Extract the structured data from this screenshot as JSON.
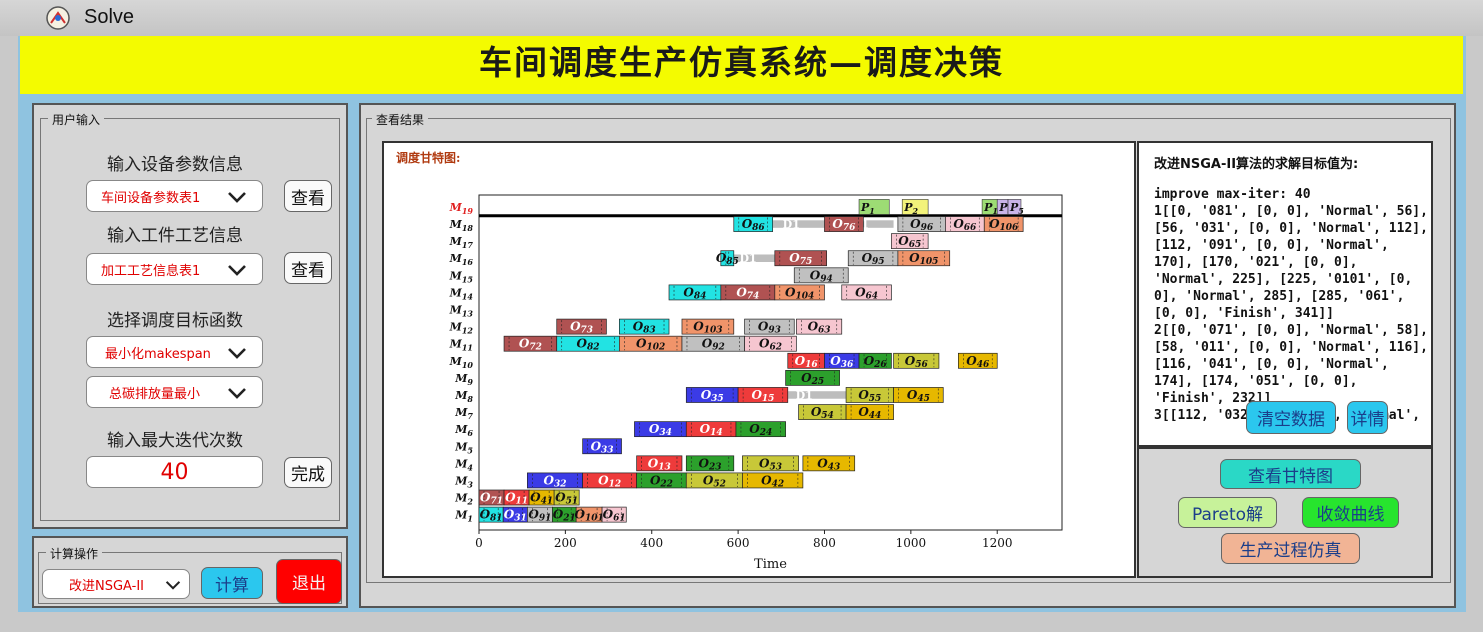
{
  "window": {
    "title": "Solve"
  },
  "banner": {
    "title": "车间调度生产仿真系统—调度决策"
  },
  "input_group": {
    "title": "用户输入",
    "equip_label": "输入设备参数信息",
    "equip_combo": "车间设备参数表1",
    "view_button": "查看",
    "process_label": "输入工件工艺信息",
    "process_combo": "加工工艺信息表1",
    "objective_label": "选择调度目标函数",
    "objective_combo_1": "最小化makespan",
    "objective_combo_2": "总碳排放量最小",
    "iter_label": "输入最大迭代次数",
    "iter_value": "40",
    "done_button": "完成"
  },
  "calc_group": {
    "title": "计算操作",
    "algo_combo": "改进NSGA-II",
    "calc_button": "计算",
    "exit_button": "退出"
  },
  "result_group": {
    "title": "查看结果",
    "chart_caption": "调度甘特图:",
    "objective_caption": "改进NSGA-II算法的求解目标值为:",
    "result_text": "improve max-iter: 40\n1[[0, '081', [0, 0], 'Normal', 56], [56, '031', [0, 0], 'Normal', 112], [112, '091', [0, 0], 'Normal', 170], [170, '021', [0, 0], 'Normal', 225], [225, '0101', [0, 0], 'Normal', 285], [285, '061', [0, 0], 'Finish', 341]]\n2[[0, '071', [0, 0], 'Normal', 58], [58, '011', [0, 0], 'Normal', 116], [116, '041', [0, 0], 'Normal', 174], [174, '051', [0, 0], 'Finish', 232]]\n3[[112, '032', [15, 10], 'Normal',",
    "clear_button": "清空数据",
    "detail_button": "详情",
    "gantt_button": "查看甘特图",
    "pareto_button": "Pareto解",
    "converge_button": "收敛曲线",
    "simulate_button": "生产过程仿真"
  },
  "icons": {
    "app": "solve-app-icon",
    "dropdown": "chevron-down-icon"
  },
  "chart_data": {
    "type": "gantt",
    "xlabel": "Time",
    "xlim": [
      0,
      1350
    ],
    "xticks": [
      "0",
      "200",
      "400",
      "600",
      "800",
      "1000",
      "1200"
    ],
    "machines": [
      "M1",
      "M2",
      "M3",
      "M4",
      "M5",
      "M6",
      "M7",
      "M8",
      "M9",
      "M10",
      "M11",
      "M12",
      "M13",
      "M14",
      "M15",
      "M16",
      "M17",
      "M18",
      "M19"
    ],
    "job_colors": {
      "1": "#ee3b3b",
      "2": "#2ca02c",
      "3": "#3b3be6",
      "4": "#e6b800",
      "5": "#c8c838",
      "6": "#f6c6d0",
      "7": "#b05252",
      "8": "#22e3e3",
      "9": "#c0c0c0",
      "10": "#f0946a",
      "P": "#9ddc74",
      "PM": "#c9b4e8"
    },
    "ops": [
      {
        "m": 1,
        "job": 8,
        "sub": "1",
        "start": 0,
        "end": 56
      },
      {
        "m": 1,
        "job": 3,
        "sub": "1",
        "start": 56,
        "end": 112
      },
      {
        "m": 1,
        "job": 9,
        "sub": "1",
        "start": 112,
        "end": 170
      },
      {
        "m": 1,
        "job": 2,
        "sub": "1",
        "start": 170,
        "end": 225
      },
      {
        "m": 1,
        "job": 10,
        "sub": "1",
        "start": 225,
        "end": 285
      },
      {
        "m": 1,
        "job": 6,
        "sub": "1",
        "start": 285,
        "end": 341
      },
      {
        "m": 2,
        "job": 7,
        "sub": "1",
        "start": 0,
        "end": 58
      },
      {
        "m": 2,
        "job": 1,
        "sub": "1",
        "start": 58,
        "end": 116
      },
      {
        "m": 2,
        "job": 4,
        "sub": "1",
        "start": 116,
        "end": 174
      },
      {
        "m": 2,
        "job": 5,
        "sub": "1",
        "start": 174,
        "end": 232
      },
      {
        "m": 3,
        "job": 3,
        "sub": "2",
        "start": 112,
        "end": 240
      },
      {
        "m": 3,
        "job": 1,
        "sub": "2",
        "start": 240,
        "end": 365
      },
      {
        "m": 3,
        "job": 2,
        "sub": "2",
        "start": 365,
        "end": 480
      },
      {
        "m": 3,
        "job": 5,
        "sub": "2",
        "start": 480,
        "end": 610
      },
      {
        "m": 3,
        "job": 4,
        "sub": "2",
        "start": 610,
        "end": 750
      },
      {
        "m": 4,
        "job": 1,
        "sub": "3",
        "start": 365,
        "end": 470
      },
      {
        "m": 4,
        "job": 2,
        "sub": "3",
        "start": 480,
        "end": 590
      },
      {
        "m": 4,
        "job": 5,
        "sub": "3",
        "start": 610,
        "end": 740
      },
      {
        "m": 4,
        "job": 4,
        "sub": "3",
        "start": 750,
        "end": 870
      },
      {
        "m": 5,
        "job": 3,
        "sub": "3",
        "start": 240,
        "end": 330
      },
      {
        "m": 6,
        "job": 3,
        "sub": "4",
        "start": 360,
        "end": 480
      },
      {
        "m": 6,
        "job": 1,
        "sub": "4",
        "start": 480,
        "end": 595
      },
      {
        "m": 6,
        "job": 2,
        "sub": "4",
        "start": 595,
        "end": 710
      },
      {
        "m": 7,
        "job": 5,
        "sub": "4",
        "start": 740,
        "end": 850
      },
      {
        "m": 7,
        "job": 4,
        "sub": "4",
        "start": 850,
        "end": 960
      },
      {
        "m": 8,
        "job": 3,
        "sub": "5",
        "start": 480,
        "end": 600
      },
      {
        "m": 8,
        "job": 1,
        "sub": "5",
        "start": 600,
        "end": 715
      },
      {
        "m": 8,
        "job": 5,
        "sub": "5",
        "start": 850,
        "end": 960
      },
      {
        "m": 8,
        "job": 4,
        "sub": "5",
        "start": 960,
        "end": 1075
      },
      {
        "m": 9,
        "job": 2,
        "sub": "5",
        "start": 710,
        "end": 835
      },
      {
        "m": 10,
        "job": 1,
        "sub": "6",
        "start": 715,
        "end": 800
      },
      {
        "m": 10,
        "job": 3,
        "sub": "6",
        "start": 800,
        "end": 880
      },
      {
        "m": 10,
        "job": 2,
        "sub": "6",
        "start": 880,
        "end": 955
      },
      {
        "m": 10,
        "job": 5,
        "sub": "6",
        "start": 960,
        "end": 1065
      },
      {
        "m": 10,
        "job": 4,
        "sub": "6",
        "start": 1110,
        "end": 1200
      },
      {
        "m": 11,
        "job": 7,
        "sub": "2",
        "start": 58,
        "end": 180
      },
      {
        "m": 11,
        "job": 8,
        "sub": "2",
        "start": 180,
        "end": 325
      },
      {
        "m": 11,
        "job": 10,
        "sub": "2",
        "start": 325,
        "end": 470
      },
      {
        "m": 11,
        "job": 9,
        "sub": "2",
        "start": 470,
        "end": 615
      },
      {
        "m": 11,
        "job": 6,
        "sub": "2",
        "start": 615,
        "end": 735
      },
      {
        "m": 12,
        "job": 7,
        "sub": "3",
        "start": 180,
        "end": 295
      },
      {
        "m": 12,
        "job": 8,
        "sub": "3",
        "start": 325,
        "end": 440
      },
      {
        "m": 12,
        "job": 10,
        "sub": "3",
        "start": 470,
        "end": 590
      },
      {
        "m": 12,
        "job": 9,
        "sub": "3",
        "start": 615,
        "end": 730
      },
      {
        "m": 12,
        "job": 6,
        "sub": "3",
        "start": 735,
        "end": 840
      },
      {
        "m": 14,
        "job": 8,
        "sub": "4",
        "start": 440,
        "end": 560
      },
      {
        "m": 14,
        "job": 7,
        "sub": "4",
        "start": 560,
        "end": 685
      },
      {
        "m": 14,
        "job": 10,
        "sub": "4",
        "start": 685,
        "end": 800
      },
      {
        "m": 14,
        "job": 6,
        "sub": "4",
        "start": 840,
        "end": 955
      },
      {
        "m": 15,
        "job": 9,
        "sub": "4",
        "start": 730,
        "end": 855
      },
      {
        "m": 16,
        "job": 8,
        "sub": "5",
        "start": 560,
        "end": 590
      },
      {
        "m": 16,
        "job": 7,
        "sub": "5",
        "start": 685,
        "end": 805
      },
      {
        "m": 16,
        "job": 9,
        "sub": "5",
        "start": 855,
        "end": 970
      },
      {
        "m": 16,
        "job": 10,
        "sub": "5",
        "start": 970,
        "end": 1090
      },
      {
        "m": 17,
        "job": 6,
        "sub": "5",
        "start": 955,
        "end": 1040
      },
      {
        "m": 18,
        "job": 8,
        "sub": "6",
        "start": 590,
        "end": 680
      },
      {
        "m": 18,
        "job": 7,
        "sub": "6",
        "start": 800,
        "end": 890
      },
      {
        "m": 18,
        "job": 9,
        "sub": "6",
        "start": 970,
        "end": 1080
      },
      {
        "m": 18,
        "job": 6,
        "sub": "6",
        "start": 1080,
        "end": 1170
      },
      {
        "m": 18,
        "job": 10,
        "sub": "6",
        "start": 1170,
        "end": 1260
      }
    ],
    "breakdowns": [
      {
        "m": 16,
        "start": 580,
        "end": 690,
        "label": "D1"
      },
      {
        "m": 18,
        "start": 680,
        "end": 810,
        "label": "D1"
      },
      {
        "m": 18,
        "start": 840,
        "end": 960,
        "label": "D1"
      },
      {
        "m": 8,
        "start": 710,
        "end": 850,
        "label": "D1"
      }
    ],
    "maintenance": [
      {
        "m": 19,
        "label": "P1",
        "start": 880,
        "end": 950
      },
      {
        "m": 19,
        "label": "P2",
        "start": 980,
        "end": 1040
      },
      {
        "m": 19,
        "label": "P1",
        "start": 1165,
        "end": 1200
      },
      {
        "m": 19,
        "label": "P4",
        "start": 1200,
        "end": 1225
      },
      {
        "m": 19,
        "label": "P5",
        "start": 1225,
        "end": 1255
      }
    ]
  }
}
